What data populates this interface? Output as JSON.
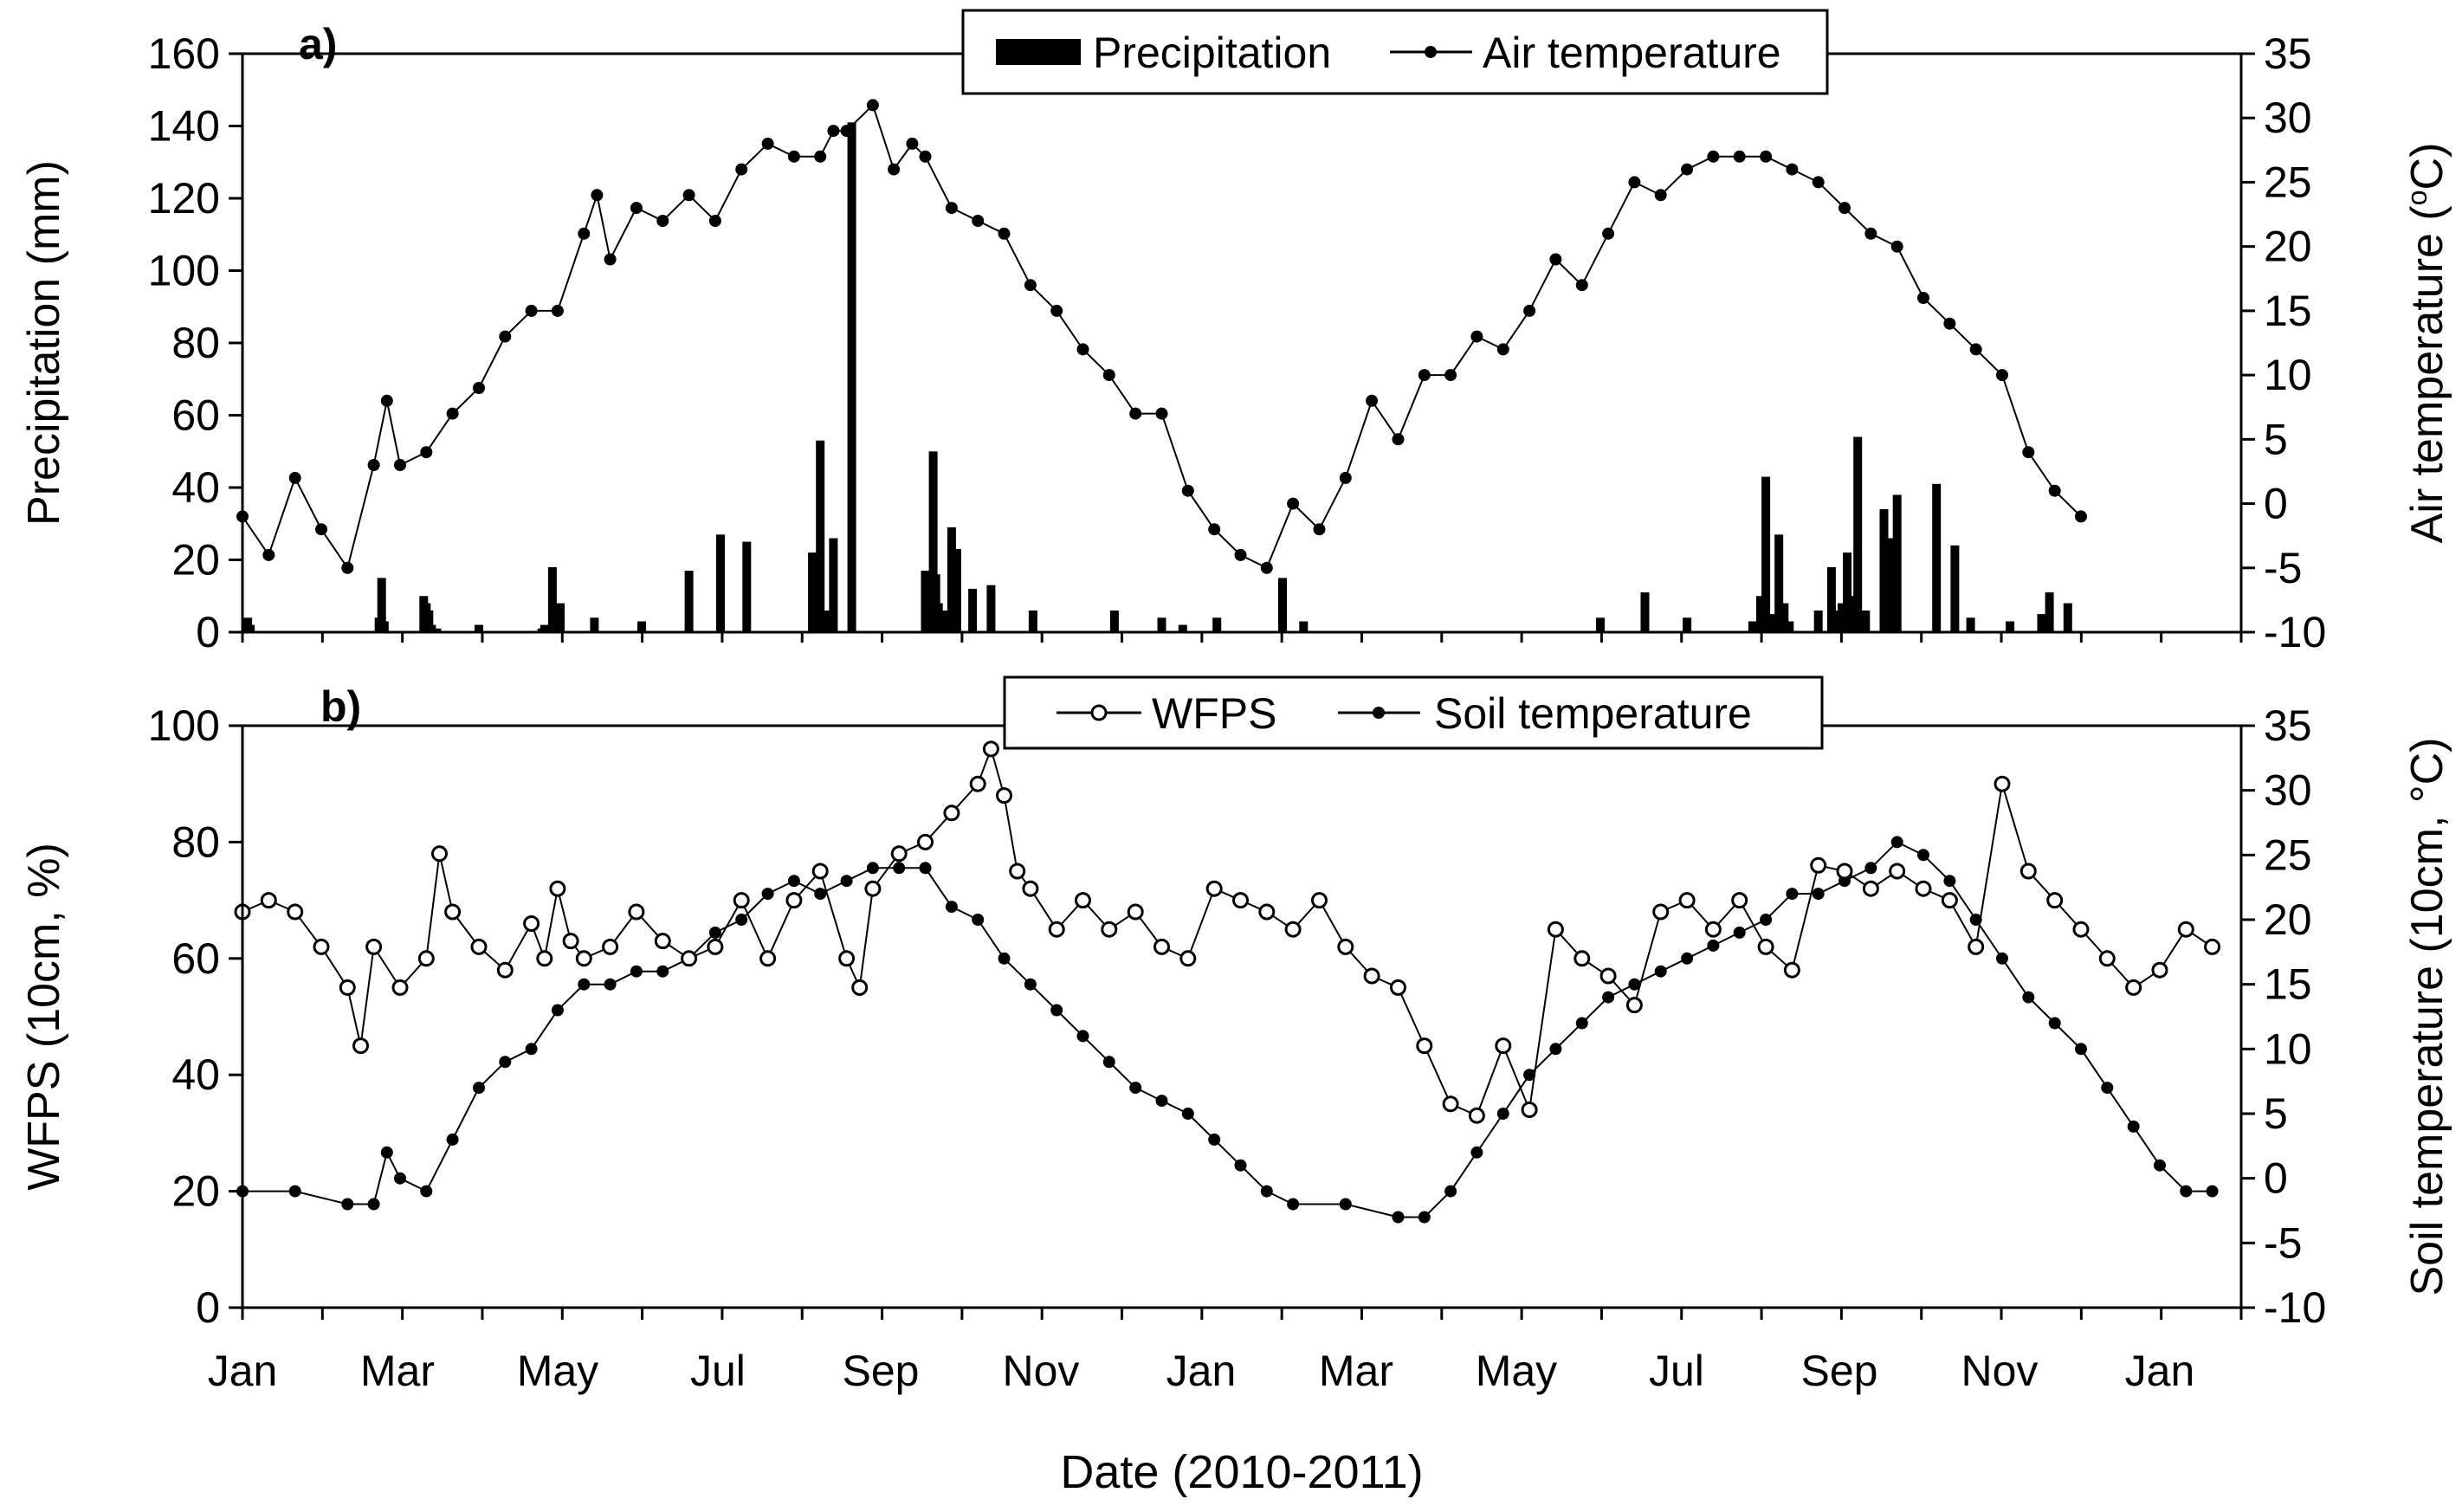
{
  "chart_data": [
    {
      "panel_label": "a)",
      "type": "bar+line",
      "legend": {
        "precip_label": "Precipitation",
        "temp_label": "Air temperature",
        "placement": "top-center"
      },
      "y_left": {
        "label": "Precipitation (mm)",
        "lim": [
          0,
          160
        ],
        "ticks": [
          "0",
          "20",
          "40",
          "60",
          "80",
          "100",
          "120",
          "140",
          "160"
        ]
      },
      "y_right": {
        "label_main": "Air temperature (",
        "label_deg": "o",
        "label_end": "C)",
        "lim": [
          -10,
          35
        ],
        "ticks": [
          "-10",
          "-5",
          "0",
          "5",
          "10",
          "15",
          "20",
          "25",
          "30",
          "35"
        ]
      },
      "precipitation": {
        "name": "Precipitation",
        "days": [
          2,
          3,
          52,
          53,
          54,
          69,
          70,
          71,
          72,
          74,
          90,
          114,
          115,
          118,
          121,
          134,
          152,
          170,
          182,
          192,
          217,
          220,
          222,
          225,
          232,
          260,
          262,
          263,
          264,
          265,
          266,
          267,
          268,
          270,
          272,
          278,
          285,
          301,
          332,
          350,
          358,
          371,
          396,
          404,
          517,
          534,
          550,
          575,
          578,
          580,
          582,
          585,
          587,
          589,
          600,
          605,
          607,
          609,
          611,
          613,
          615,
          618,
          625,
          628,
          630,
          645,
          652,
          658,
          673,
          685,
          688,
          695
        ],
        "values": [
          4,
          2,
          4,
          15,
          3,
          10,
          8,
          6,
          2,
          1,
          2,
          1,
          2,
          18,
          8,
          4,
          3,
          17,
          27,
          25,
          22,
          53,
          6,
          26,
          141,
          17,
          13,
          50,
          16,
          8,
          4,
          2,
          6,
          29,
          23,
          12,
          13,
          6,
          6,
          4,
          2,
          4,
          15,
          3,
          4,
          11,
          4,
          3,
          10,
          43,
          5,
          27,
          8,
          3,
          6,
          18,
          6,
          8,
          22,
          10,
          54,
          6,
          34,
          26,
          38,
          41,
          24,
          4,
          3,
          5,
          11,
          8
        ]
      },
      "air_temperature": {
        "name": "Air temperature",
        "points": [
          [
            0,
            -1
          ],
          [
            10,
            -4
          ],
          [
            20,
            2
          ],
          [
            30,
            -2
          ],
          [
            40,
            -5
          ],
          [
            50,
            3
          ],
          [
            55,
            8
          ],
          [
            60,
            3
          ],
          [
            70,
            4
          ],
          [
            80,
            7
          ],
          [
            90,
            9
          ],
          [
            100,
            13
          ],
          [
            110,
            15
          ],
          [
            120,
            15
          ],
          [
            130,
            21
          ],
          [
            135,
            24
          ],
          [
            140,
            19
          ],
          [
            150,
            23
          ],
          [
            160,
            22
          ],
          [
            170,
            24
          ],
          [
            180,
            22
          ],
          [
            190,
            26
          ],
          [
            200,
            28
          ],
          [
            210,
            27
          ],
          [
            220,
            27
          ],
          [
            225,
            29
          ],
          [
            230,
            29
          ],
          [
            240,
            31
          ],
          [
            248,
            26
          ],
          [
            255,
            28
          ],
          [
            260,
            27
          ],
          [
            270,
            23
          ],
          [
            280,
            22
          ],
          [
            290,
            21
          ],
          [
            300,
            17
          ],
          [
            310,
            15
          ],
          [
            320,
            12
          ],
          [
            330,
            10
          ],
          [
            340,
            7
          ],
          [
            350,
            7
          ],
          [
            360,
            1
          ],
          [
            370,
            -2
          ],
          [
            380,
            -4
          ],
          [
            390,
            -5
          ],
          [
            400,
            0
          ],
          [
            410,
            -2
          ],
          [
            420,
            2
          ],
          [
            430,
            8
          ],
          [
            440,
            5
          ],
          [
            450,
            10
          ],
          [
            460,
            10
          ],
          [
            470,
            13
          ],
          [
            480,
            12
          ],
          [
            490,
            15
          ],
          [
            500,
            19
          ],
          [
            510,
            17
          ],
          [
            520,
            21
          ],
          [
            530,
            25
          ],
          [
            540,
            24
          ],
          [
            550,
            26
          ],
          [
            560,
            27
          ],
          [
            570,
            27
          ],
          [
            580,
            27
          ],
          [
            590,
            26
          ],
          [
            600,
            25
          ],
          [
            610,
            23
          ],
          [
            620,
            21
          ],
          [
            630,
            20
          ],
          [
            640,
            16
          ],
          [
            650,
            14
          ],
          [
            660,
            12
          ],
          [
            670,
            10
          ],
          [
            680,
            4
          ],
          [
            690,
            1
          ],
          [
            700,
            -1
          ]
        ]
      }
    },
    {
      "panel_label": "b)",
      "type": "line",
      "legend": {
        "wfps_label": "WFPS",
        "soil_label": "Soil temperature",
        "placement": "top-center"
      },
      "y_left": {
        "label": "WFPS (10cm, %)",
        "lim": [
          0,
          100
        ],
        "ticks": [
          "0",
          "20",
          "40",
          "60",
          "80",
          "100"
        ]
      },
      "y_right": {
        "label": "Soil temperature (10cm, °C)",
        "lim": [
          -10,
          35
        ],
        "ticks": [
          "-10",
          "-5",
          "0",
          "5",
          "10",
          "15",
          "20",
          "25",
          "30",
          "35"
        ]
      },
      "wfps": {
        "name": "WFPS",
        "points": [
          [
            0,
            68
          ],
          [
            10,
            70
          ],
          [
            20,
            68
          ],
          [
            30,
            62
          ],
          [
            40,
            55
          ],
          [
            45,
            45
          ],
          [
            50,
            62
          ],
          [
            60,
            55
          ],
          [
            70,
            60
          ],
          [
            75,
            78
          ],
          [
            80,
            68
          ],
          [
            90,
            62
          ],
          [
            100,
            58
          ],
          [
            110,
            66
          ],
          [
            115,
            60
          ],
          [
            120,
            72
          ],
          [
            125,
            63
          ],
          [
            130,
            60
          ],
          [
            140,
            62
          ],
          [
            150,
            68
          ],
          [
            160,
            63
          ],
          [
            170,
            60
          ],
          [
            180,
            62
          ],
          [
            190,
            70
          ],
          [
            200,
            60
          ],
          [
            210,
            70
          ],
          [
            220,
            75
          ],
          [
            230,
            60
          ],
          [
            235,
            55
          ],
          [
            240,
            72
          ],
          [
            250,
            78
          ],
          [
            260,
            80
          ],
          [
            270,
            85
          ],
          [
            280,
            90
          ],
          [
            285,
            96
          ],
          [
            290,
            88
          ],
          [
            295,
            75
          ],
          [
            300,
            72
          ],
          [
            310,
            65
          ],
          [
            320,
            70
          ],
          [
            330,
            65
          ],
          [
            340,
            68
          ],
          [
            350,
            62
          ],
          [
            360,
            60
          ],
          [
            370,
            72
          ],
          [
            380,
            70
          ],
          [
            390,
            68
          ],
          [
            400,
            65
          ],
          [
            410,
            70
          ],
          [
            420,
            62
          ],
          [
            430,
            57
          ],
          [
            440,
            55
          ],
          [
            450,
            45
          ],
          [
            460,
            35
          ],
          [
            470,
            33
          ],
          [
            480,
            45
          ],
          [
            490,
            34
          ],
          [
            500,
            65
          ],
          [
            510,
            60
          ],
          [
            520,
            57
          ],
          [
            530,
            52
          ],
          [
            540,
            68
          ],
          [
            550,
            70
          ],
          [
            560,
            65
          ],
          [
            570,
            70
          ],
          [
            580,
            62
          ],
          [
            590,
            58
          ],
          [
            600,
            76
          ],
          [
            610,
            75
          ],
          [
            620,
            72
          ],
          [
            630,
            75
          ],
          [
            640,
            72
          ],
          [
            650,
            70
          ],
          [
            660,
            62
          ],
          [
            670,
            90
          ],
          [
            680,
            75
          ],
          [
            690,
            70
          ],
          [
            700,
            65
          ],
          [
            710,
            60
          ],
          [
            720,
            55
          ],
          [
            730,
            58
          ],
          [
            740,
            65
          ],
          [
            750,
            62
          ]
        ]
      },
      "soil_temperature": {
        "name": "Soil temperature",
        "points": [
          [
            0,
            -1
          ],
          [
            20,
            -1
          ],
          [
            40,
            -2
          ],
          [
            50,
            -2
          ],
          [
            55,
            2
          ],
          [
            60,
            0
          ],
          [
            70,
            -1
          ],
          [
            80,
            3
          ],
          [
            90,
            7
          ],
          [
            100,
            9
          ],
          [
            110,
            10
          ],
          [
            120,
            13
          ],
          [
            130,
            15
          ],
          [
            140,
            15
          ],
          [
            150,
            16
          ],
          [
            160,
            16
          ],
          [
            170,
            17
          ],
          [
            180,
            19
          ],
          [
            190,
            20
          ],
          [
            200,
            22
          ],
          [
            210,
            23
          ],
          [
            220,
            22
          ],
          [
            230,
            23
          ],
          [
            240,
            24
          ],
          [
            250,
            24
          ],
          [
            260,
            24
          ],
          [
            270,
            21
          ],
          [
            280,
            20
          ],
          [
            290,
            17
          ],
          [
            300,
            15
          ],
          [
            310,
            13
          ],
          [
            320,
            11
          ],
          [
            330,
            9
          ],
          [
            340,
            7
          ],
          [
            350,
            6
          ],
          [
            360,
            5
          ],
          [
            370,
            3
          ],
          [
            380,
            1
          ],
          [
            390,
            -1
          ],
          [
            400,
            -2
          ],
          [
            420,
            -2
          ],
          [
            440,
            -3
          ],
          [
            450,
            -3
          ],
          [
            460,
            -1
          ],
          [
            470,
            2
          ],
          [
            480,
            5
          ],
          [
            490,
            8
          ],
          [
            500,
            10
          ],
          [
            510,
            12
          ],
          [
            520,
            14
          ],
          [
            530,
            15
          ],
          [
            540,
            16
          ],
          [
            550,
            17
          ],
          [
            560,
            18
          ],
          [
            570,
            19
          ],
          [
            580,
            20
          ],
          [
            590,
            22
          ],
          [
            600,
            22
          ],
          [
            610,
            23
          ],
          [
            620,
            24
          ],
          [
            630,
            26
          ],
          [
            640,
            25
          ],
          [
            650,
            23
          ],
          [
            660,
            20
          ],
          [
            670,
            17
          ],
          [
            680,
            14
          ],
          [
            690,
            12
          ],
          [
            700,
            10
          ],
          [
            710,
            7
          ],
          [
            720,
            4
          ],
          [
            730,
            1
          ],
          [
            740,
            -1
          ],
          [
            750,
            -1
          ]
        ]
      }
    }
  ],
  "x_axis": {
    "label": "Date (2010-2011)",
    "day_span": 761,
    "month_ticks": [
      {
        "label": "Jan",
        "day": 0
      },
      {
        "label": "Mar",
        "day": 59
      },
      {
        "label": "May",
        "day": 120
      },
      {
        "label": "Jul",
        "day": 181
      },
      {
        "label": "Sep",
        "day": 243
      },
      {
        "label": "Nov",
        "day": 304
      },
      {
        "label": "Jan",
        "day": 365
      },
      {
        "label": "Mar",
        "day": 424
      },
      {
        "label": "May",
        "day": 485
      },
      {
        "label": "Jul",
        "day": 546
      },
      {
        "label": "Sep",
        "day": 608
      },
      {
        "label": "Nov",
        "day": 669
      },
      {
        "label": "Jan",
        "day": 730
      }
    ]
  }
}
